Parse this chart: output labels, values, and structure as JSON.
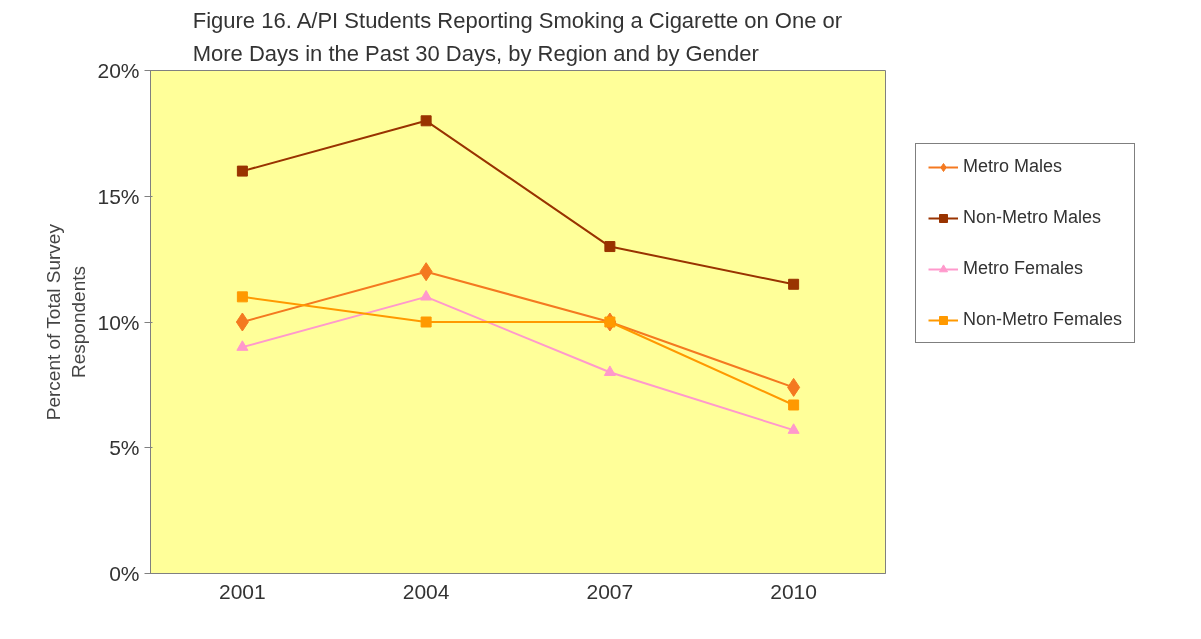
{
  "chart_data": {
    "type": "line",
    "title": "Figure 16. A/PI Students Reporting Smoking a Cigarette on One or\nMore Days in the Past 30 Days, by Region and by Gender",
    "ylabel": "Percent of Total Survey\nRespondents",
    "categories": [
      "2001",
      "2004",
      "2007",
      "2010"
    ],
    "series": [
      {
        "name": "Metro Males",
        "color": "#f47920",
        "marker": "diamond",
        "values": [
          10.0,
          12.0,
          10.0,
          7.4
        ]
      },
      {
        "name": "Non-Metro Males",
        "color": "#993300",
        "marker": "square",
        "values": [
          16.0,
          18.0,
          13.0,
          11.5
        ]
      },
      {
        "name": "Metro Females",
        "color": "#ff99cc",
        "marker": "triangle",
        "values": [
          9.0,
          11.0,
          8.0,
          5.7
        ]
      },
      {
        "name": "Non-Metro Females",
        "color": "#ff9900",
        "marker": "square",
        "values": [
          11.0,
          10.0,
          10.0,
          6.7
        ]
      }
    ],
    "ylim": [
      0,
      20
    ],
    "yticks": [
      {
        "value": 0,
        "label": "0%"
      },
      {
        "value": 5,
        "label": "5%"
      },
      {
        "value": 10,
        "label": "10%"
      },
      {
        "value": 15,
        "label": "15%"
      },
      {
        "value": 20,
        "label": "20%"
      }
    ],
    "grid": false,
    "legend": "right",
    "line_style": "solid"
  }
}
